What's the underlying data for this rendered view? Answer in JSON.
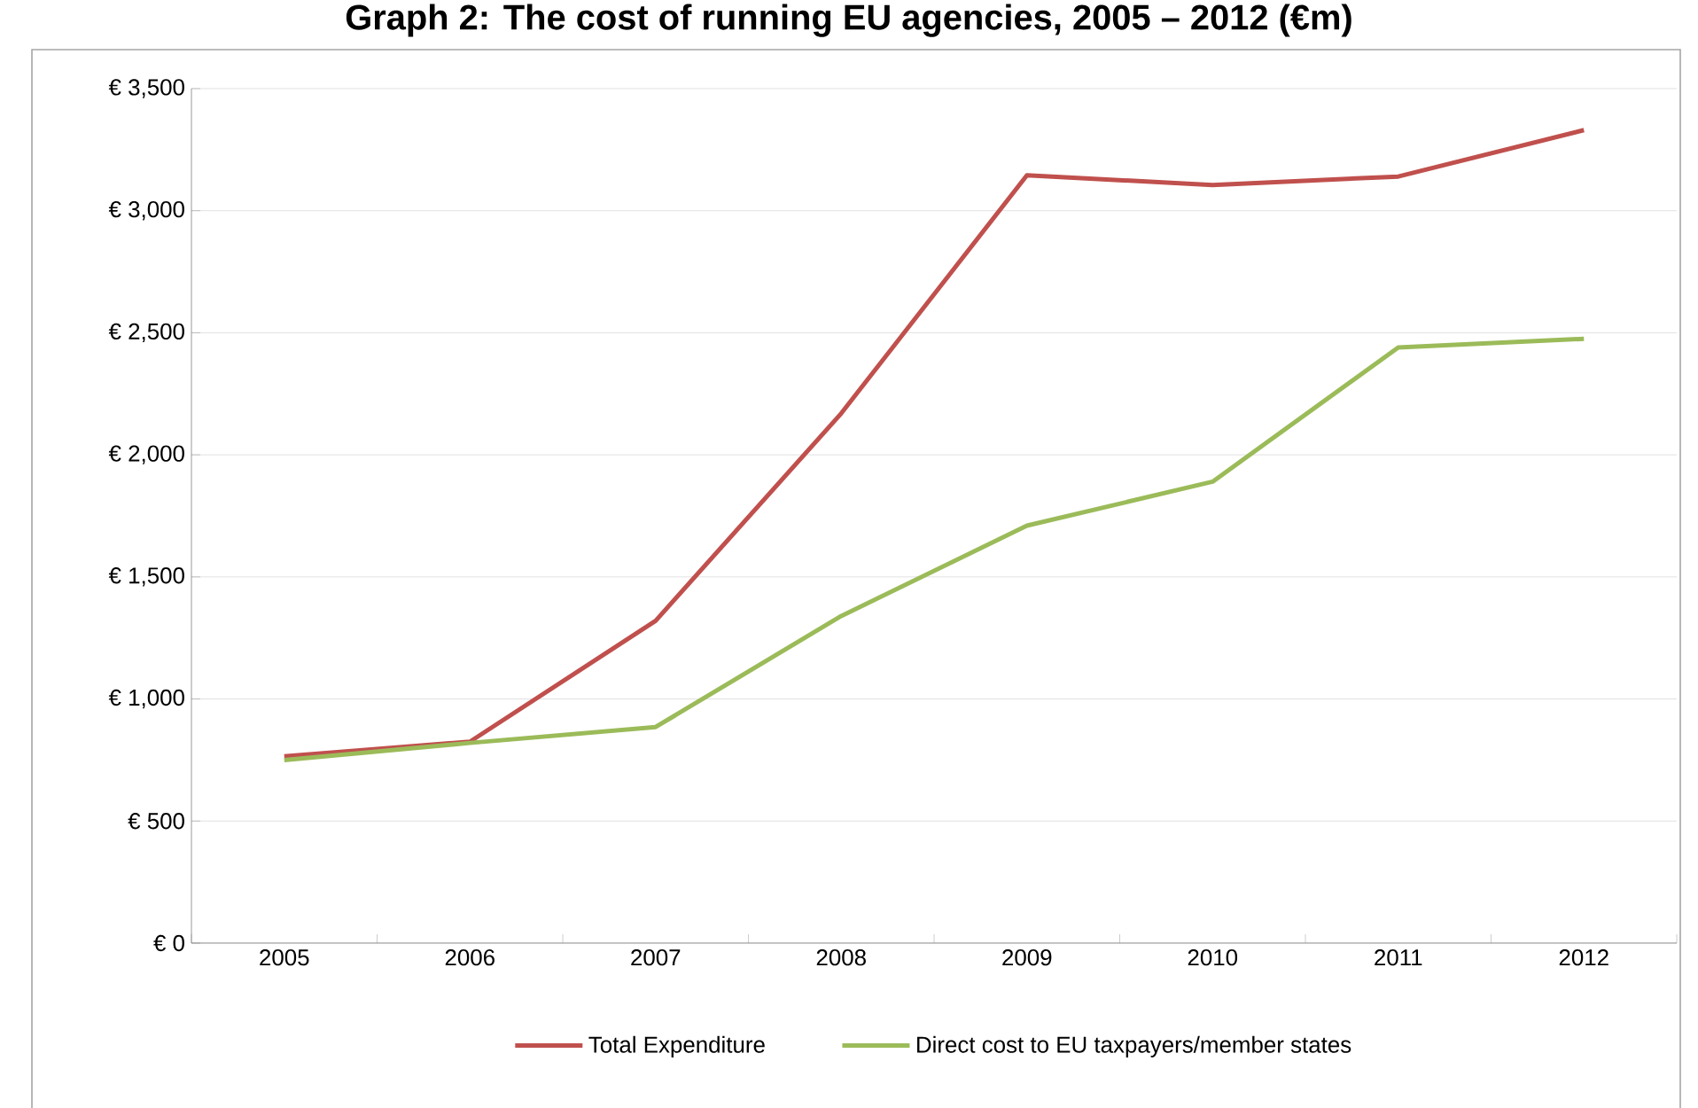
{
  "chart_data": {
    "type": "line",
    "title": "Graph 2: The cost of running EU agencies, 2005 – 2012 (€m)",
    "categories": [
      "2005",
      "2006",
      "2007",
      "2008",
      "2009",
      "2010",
      "2011",
      "2012"
    ],
    "series": [
      {
        "name": "Total Expenditure",
        "color": "#c0504d",
        "values": [
          765,
          825,
          1320,
          2170,
          3145,
          3105,
          3140,
          3330
        ]
      },
      {
        "name": "Direct cost to EU taxpayers/member states",
        "color": "#9bbb59",
        "values": [
          750,
          820,
          885,
          1340,
          1710,
          1890,
          2440,
          2475
        ]
      }
    ],
    "ylim": [
      0,
      3500
    ],
    "yticks": [
      {
        "value": 0,
        "label": "€ 0"
      },
      {
        "value": 500,
        "label": "€ 500"
      },
      {
        "value": 1000,
        "label": "€ 1,000"
      },
      {
        "value": 1500,
        "label": "€ 1,500"
      },
      {
        "value": 2000,
        "label": "€ 2,000"
      },
      {
        "value": 2500,
        "label": "€ 2,500"
      },
      {
        "value": 3000,
        "label": "€ 3,000"
      },
      {
        "value": 3500,
        "label": "€ 3,500"
      }
    ],
    "grid": "y",
    "legend": "bottom",
    "marker": "none",
    "line_style": "solid"
  }
}
